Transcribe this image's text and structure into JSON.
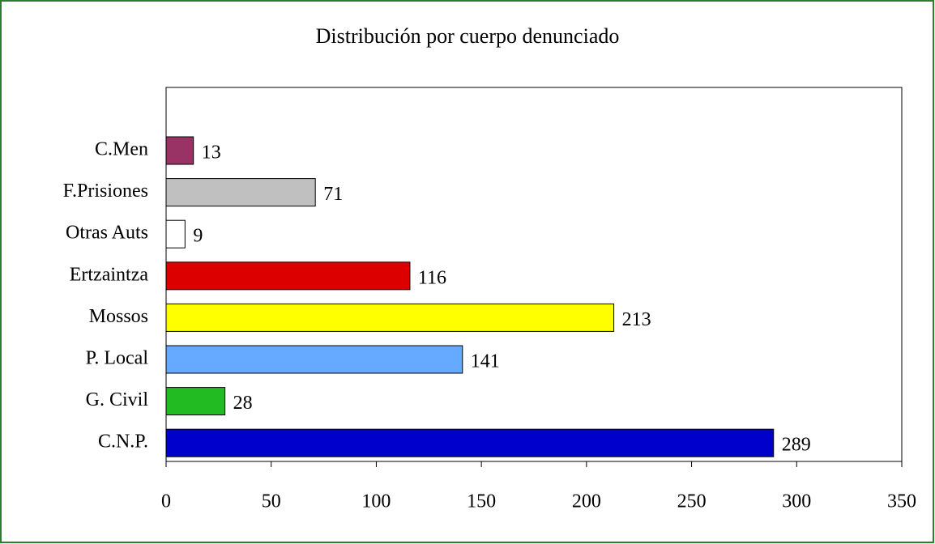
{
  "chart_data": {
    "type": "bar",
    "orientation": "horizontal",
    "title": "Distribución por cuerpo denunciado",
    "categories": [
      "C.Men",
      "F.Prisiones",
      "Otras Auts",
      "Ertzaintza",
      "Mossos",
      "P. Local",
      "G. Civil",
      "C.N.P."
    ],
    "values": [
      13,
      71,
      9,
      116,
      213,
      141,
      28,
      289
    ],
    "colors": [
      "#993366",
      "#c0c0c0",
      "#ffffff",
      "#dd0000",
      "#ffff00",
      "#66aaff",
      "#22bb22",
      "#0000cc"
    ],
    "xlim": [
      0,
      350
    ],
    "xticks": [
      0,
      50,
      100,
      150,
      200,
      250,
      300,
      350
    ],
    "grid": false
  }
}
